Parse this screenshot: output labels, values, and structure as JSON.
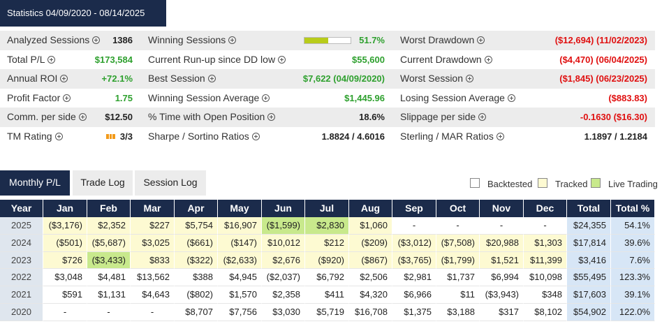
{
  "header": {
    "title": "Statistics 04/09/2020 - 08/14/2025"
  },
  "stats": {
    "rows": [
      [
        {
          "label": "Analyzed Sessions",
          "value": "1386",
          "color": "#222222"
        },
        {
          "label": "Winning Sessions",
          "value": "51.7%",
          "color": "#2ea02e",
          "bar_color": "#b8cc1a"
        },
        {
          "label": "Worst Drawdown",
          "value": "($12,694) (11/02/2023)",
          "color": "#e01010"
        }
      ],
      [
        {
          "label": "Total P/L",
          "value": "$173,584",
          "color": "#2ea02e"
        },
        {
          "label": "Current Run-up since DD low",
          "value": "$55,600",
          "color": "#2ea02e"
        },
        {
          "label": "Current Drawdown",
          "value": "($4,470) (06/04/2025)",
          "color": "#e01010"
        }
      ],
      [
        {
          "label": "Annual ROI",
          "value": "+72.1%",
          "color": "#2ea02e"
        },
        {
          "label": "Best Session",
          "value": "$7,622 (04/09/2020)",
          "color": "#2ea02e"
        },
        {
          "label": "Worst Session",
          "value": "($1,845) (06/23/2025)",
          "color": "#e01010"
        }
      ],
      [
        {
          "label": "Profit Factor",
          "value": "1.75",
          "color": "#2ea02e"
        },
        {
          "label": "Winning Session Average",
          "value": "$1,445.96",
          "color": "#2ea02e"
        },
        {
          "label": "Losing Session Average",
          "value": "($883.83)",
          "color": "#e01010"
        }
      ],
      [
        {
          "label": "Comm. per side",
          "value": "$12.50",
          "color": "#222222"
        },
        {
          "label": "% Time with Open Position",
          "value": "18.6%",
          "color": "#222222"
        },
        {
          "label": "Slippage per side",
          "value": "-0.1630 ($16.30)",
          "color": "#e01010"
        }
      ],
      [
        {
          "label": "TM Rating",
          "value": "3/3",
          "color": "#222222"
        },
        {
          "label": "Sharpe / Sortino Ratios",
          "value": "1.8824 / 4.6016",
          "color": "#222222"
        },
        {
          "label": "Sterling / MAR Ratios",
          "value": "1.1897 / 1.2184",
          "color": "#222222"
        }
      ]
    ]
  },
  "tabs": [
    "Monthly P/L",
    "Trade Log",
    "Session Log"
  ],
  "legend": [
    {
      "label": "Backtested",
      "color": "#ffffff"
    },
    {
      "label": "Tracked",
      "color": "#fdfad2"
    },
    {
      "label": "Live Trading",
      "color": "#c8e98c"
    }
  ],
  "table": {
    "columns": [
      "Year",
      "Jan",
      "Feb",
      "Mar",
      "Apr",
      "May",
      "Jun",
      "Jul",
      "Aug",
      "Sep",
      "Oct",
      "Nov",
      "Dec",
      "Total",
      "Total %"
    ],
    "rows": [
      {
        "cells": [
          "2025",
          "($3,176)",
          "$2,352",
          "$227",
          "$5,754",
          "$16,907",
          "($1,599)",
          "$2,830",
          "$1,060",
          "-",
          "-",
          "-",
          "-",
          "$24,355",
          "54.1%"
        ],
        "fills": [
          "#fdfad2",
          "#fdfad2",
          "#fdfad2",
          "#fdfad2",
          "#fdfad2",
          "#c8e98c",
          "#c8e98c",
          "#fdfad2",
          "#ffffff",
          "#ffffff",
          "#ffffff",
          "#ffffff"
        ]
      },
      {
        "cells": [
          "2024",
          "($501)",
          "($5,687)",
          "$3,025",
          "($661)",
          "($147)",
          "$10,012",
          "$212",
          "($209)",
          "($3,012)",
          "($7,508)",
          "$20,988",
          "$1,303",
          "$17,814",
          "39.6%"
        ],
        "fills": [
          "#fdfad2",
          "#fdfad2",
          "#fdfad2",
          "#fdfad2",
          "#fdfad2",
          "#fdfad2",
          "#fdfad2",
          "#fdfad2",
          "#fdfad2",
          "#fdfad2",
          "#fdfad2",
          "#fdfad2"
        ]
      },
      {
        "cells": [
          "2023",
          "$726",
          "($3,433)",
          "$833",
          "($322)",
          "($2,633)",
          "$2,676",
          "($920)",
          "($867)",
          "($3,765)",
          "($1,799)",
          "$1,521",
          "$11,399",
          "$3,416",
          "7.6%"
        ],
        "fills": [
          "#fdfad2",
          "#c8e98c",
          "#fdfad2",
          "#fdfad2",
          "#fdfad2",
          "#fdfad2",
          "#fdfad2",
          "#fdfad2",
          "#fdfad2",
          "#fdfad2",
          "#fdfad2",
          "#fdfad2"
        ]
      },
      {
        "cells": [
          "2022",
          "$3,048",
          "$4,481",
          "$13,562",
          "$388",
          "$4,945",
          "($2,037)",
          "$6,792",
          "$2,506",
          "$2,981",
          "$1,737",
          "$6,994",
          "$10,098",
          "$55,495",
          "123.3%"
        ],
        "fills": [
          "#ffffff",
          "#ffffff",
          "#ffffff",
          "#ffffff",
          "#ffffff",
          "#ffffff",
          "#ffffff",
          "#ffffff",
          "#ffffff",
          "#ffffff",
          "#ffffff",
          "#ffffff"
        ]
      },
      {
        "cells": [
          "2021",
          "$591",
          "$1,131",
          "$4,643",
          "($802)",
          "$1,570",
          "$2,358",
          "$411",
          "$4,320",
          "$6,966",
          "$11",
          "($3,943)",
          "$348",
          "$17,603",
          "39.1%"
        ],
        "fills": [
          "#ffffff",
          "#ffffff",
          "#ffffff",
          "#ffffff",
          "#ffffff",
          "#ffffff",
          "#ffffff",
          "#ffffff",
          "#ffffff",
          "#ffffff",
          "#ffffff",
          "#ffffff"
        ]
      },
      {
        "cells": [
          "2020",
          "-",
          "-",
          "-",
          "$8,707",
          "$7,756",
          "$3,030",
          "$5,719",
          "$16,708",
          "$1,375",
          "$3,188",
          "$317",
          "$8,102",
          "$54,902",
          "122.0%"
        ],
        "fills": [
          "#ffffff",
          "#ffffff",
          "#ffffff",
          "#ffffff",
          "#ffffff",
          "#ffffff",
          "#ffffff",
          "#ffffff",
          "#ffffff",
          "#ffffff",
          "#ffffff",
          "#ffffff"
        ]
      }
    ]
  }
}
